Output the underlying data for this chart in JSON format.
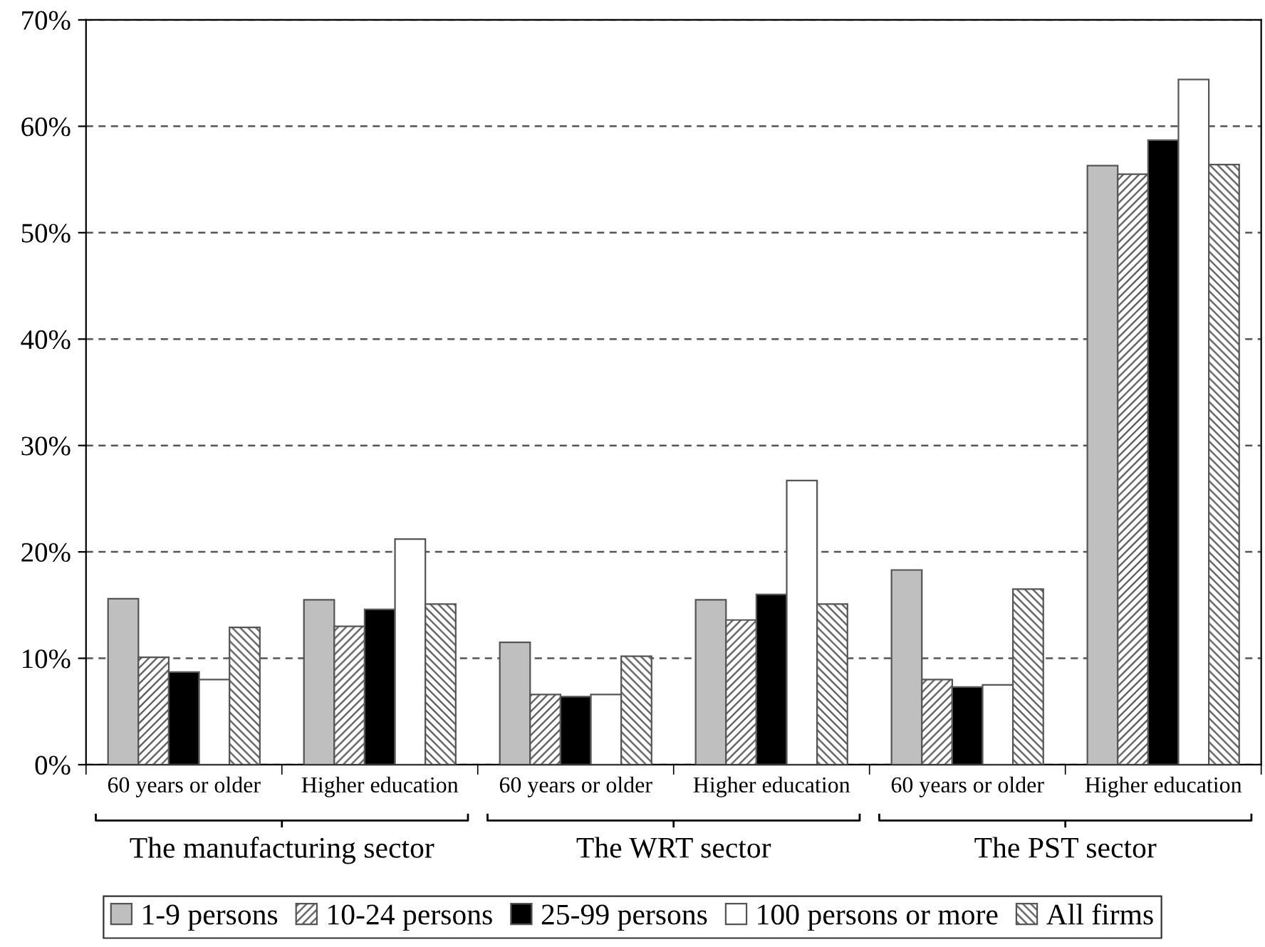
{
  "chart_data": {
    "type": "bar",
    "categories": [
      "60 years or older",
      "Higher education",
      "60 years or older",
      "Higher education",
      "60 years or older",
      "Higher education"
    ],
    "series": [
      {
        "name": "1-9 persons",
        "color": "#bfbfbf",
        "values": [
          15.6,
          15.5,
          11.5,
          15.5,
          18.3,
          56.3
        ]
      },
      {
        "name": "10-24 persons",
        "color": "#555555",
        "values": [
          10.1,
          13.0,
          6.6,
          13.6,
          8.0,
          55.5
        ]
      },
      {
        "name": "25-99 persons",
        "color": "#000000",
        "values": [
          8.7,
          14.6,
          6.4,
          16.0,
          7.3,
          58.7
        ]
      },
      {
        "name": "100 persons or more",
        "color": "#ffffff",
        "values": [
          8.0,
          21.2,
          6.6,
          26.7,
          7.5,
          64.4
        ]
      },
      {
        "name": "All firms",
        "color": "#555555",
        "values": [
          12.9,
          15.1,
          10.2,
          15.1,
          16.5,
          56.4
        ]
      }
    ],
    "annotations": [
      "The manufacturing sector",
      "The WRT sector",
      "The PST sector"
    ],
    "ylim": [
      0,
      70
    ],
    "yticks": [
      {
        "value": 0,
        "label": "0%"
      },
      {
        "value": 10,
        "label": "10%"
      },
      {
        "value": 20,
        "label": "20%"
      },
      {
        "value": 30,
        "label": "30%"
      },
      {
        "value": 40,
        "label": "40%"
      },
      {
        "value": 50,
        "label": "50%"
      },
      {
        "value": 60,
        "label": "60%"
      },
      {
        "value": 70,
        "label": "70%"
      }
    ],
    "grid": "y",
    "legend": "bottom"
  }
}
